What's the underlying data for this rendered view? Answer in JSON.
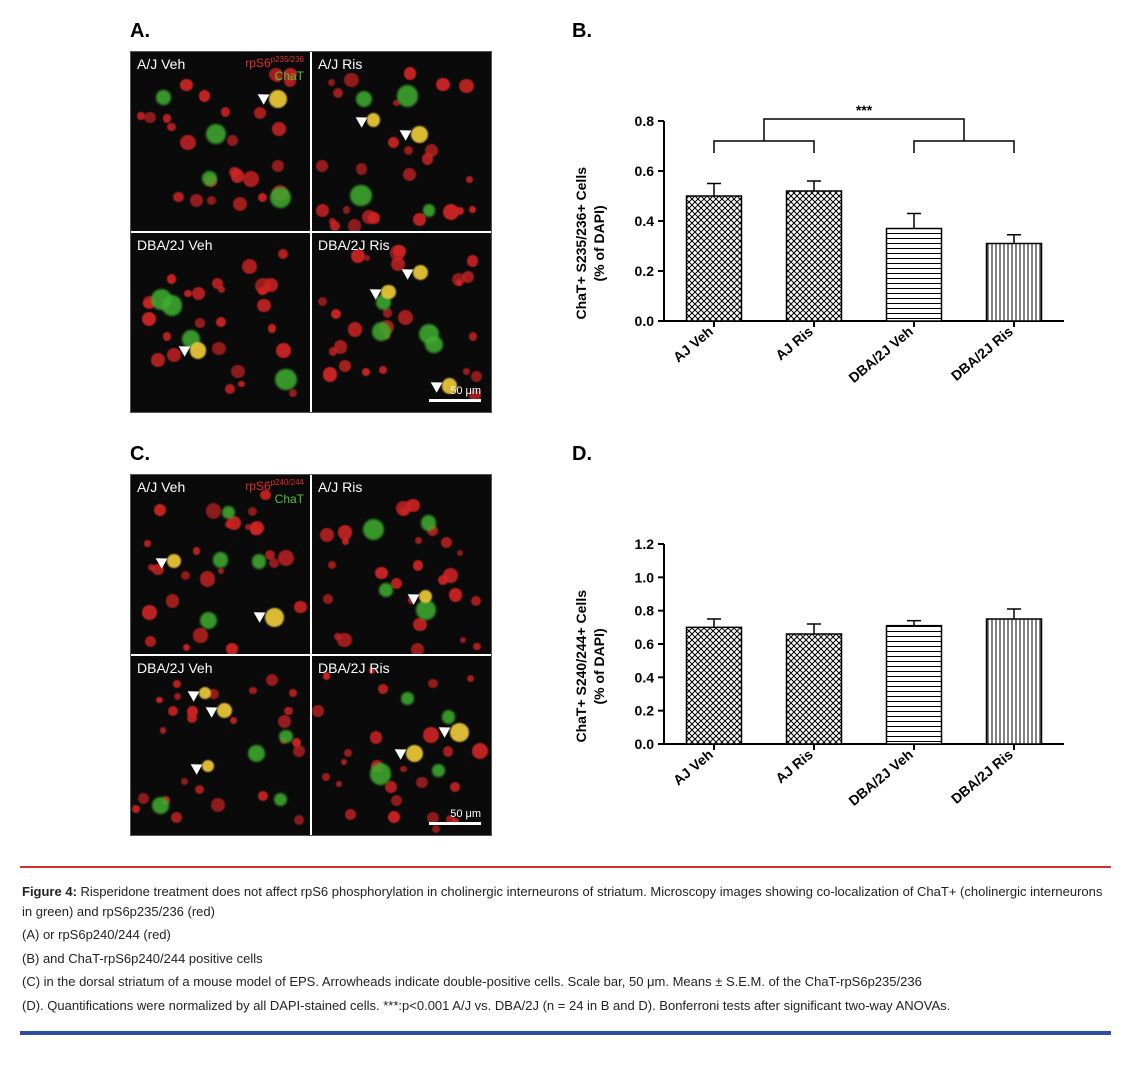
{
  "panelA": {
    "label": "A.",
    "stain1": "rpS6",
    "stain1_sup": "p235/236",
    "stain1_color": "#e03030",
    "stain2": "ChaT",
    "stain2_color": "#50c040",
    "cells": [
      "A/J Veh",
      "A/J Ris",
      "DBA/2J Veh",
      "DBA/2J Ris"
    ],
    "scalebar": "50 μm"
  },
  "panelC": {
    "label": "C.",
    "stain1": "rpS6",
    "stain1_sup": "p240/244",
    "stain1_color": "#e03030",
    "stain2": "ChaT",
    "stain2_color": "#50c040",
    "cells": [
      "A/J Veh",
      "A/J Ris",
      "DBA/2J Veh",
      "DBA/2J Ris"
    ],
    "scalebar": "50 μm"
  },
  "chartB": {
    "label": "B.",
    "type": "bar",
    "ylabel_line1": "ChaT+ S235/236+ Cells",
    "ylabel_line2": "(% of DAPI)",
    "categories": [
      "AJ Veh",
      "AJ Ris",
      "DBA/2J Veh",
      "DBA/2J Ris"
    ],
    "values": [
      0.5,
      0.52,
      0.37,
      0.31
    ],
    "errors": [
      0.05,
      0.04,
      0.06,
      0.035
    ],
    "patterns": [
      "crosshatch",
      "crosshatch",
      "hlines",
      "vlines"
    ],
    "ylim": [
      0,
      0.8
    ],
    "ytick_step": 0.2,
    "bar_width": 0.55,
    "sig_label": "***",
    "bar_stroke": "#000000",
    "background": "#ffffff",
    "axis_color": "#000000",
    "label_fontsize": 14
  },
  "chartD": {
    "label": "D.",
    "type": "bar",
    "ylabel_line1": "ChaT+ S240/244+ Cells",
    "ylabel_line2": "(% of DAPI)",
    "categories": [
      "AJ Veh",
      "AJ Ris",
      "DBA/2J Veh",
      "DBA/2J Ris"
    ],
    "values": [
      0.7,
      0.66,
      0.71,
      0.75
    ],
    "errors": [
      0.05,
      0.06,
      0.03,
      0.06
    ],
    "patterns": [
      "crosshatch",
      "crosshatch",
      "hlines",
      "vlines"
    ],
    "ylim": [
      0,
      1.2
    ],
    "ytick_step": 0.2,
    "bar_width": 0.55,
    "bar_stroke": "#000000",
    "background": "#ffffff",
    "axis_color": "#000000",
    "label_fontsize": 14
  },
  "caption": {
    "lead": "Figure 4:",
    "lead_text": " Risperidone treatment does not affect rpS6 phosphorylation in cholinergic interneurons of striatum. Microscopy images showing co-localization of ChaT+ (cholinergic interneurons in green) and rpS6p235/236 (red)",
    "lineA": " (A) or rpS6p240/244 (red)",
    "lineB": "(B) and ChaT-rpS6p240/244 positive cells",
    "lineC": "(C) in the dorsal striatum of a mouse model of EPS. Arrowheads indicate double-positive cells. Scale bar, 50 μm. Means ± S.E.M. of the ChaT-rpS6p235/236",
    "lineD": "(D). Quantifications were normalized by all DAPI-stained cells. ***:p<0.001 A/J vs. DBA/2J (n = 24 in B and D). Bonferroni tests after significant two-way ANOVAs."
  },
  "microscopy_colors": {
    "red": "#d02424",
    "green": "#3fae2f",
    "yellow": "#e6c436",
    "bg": "#080808"
  }
}
